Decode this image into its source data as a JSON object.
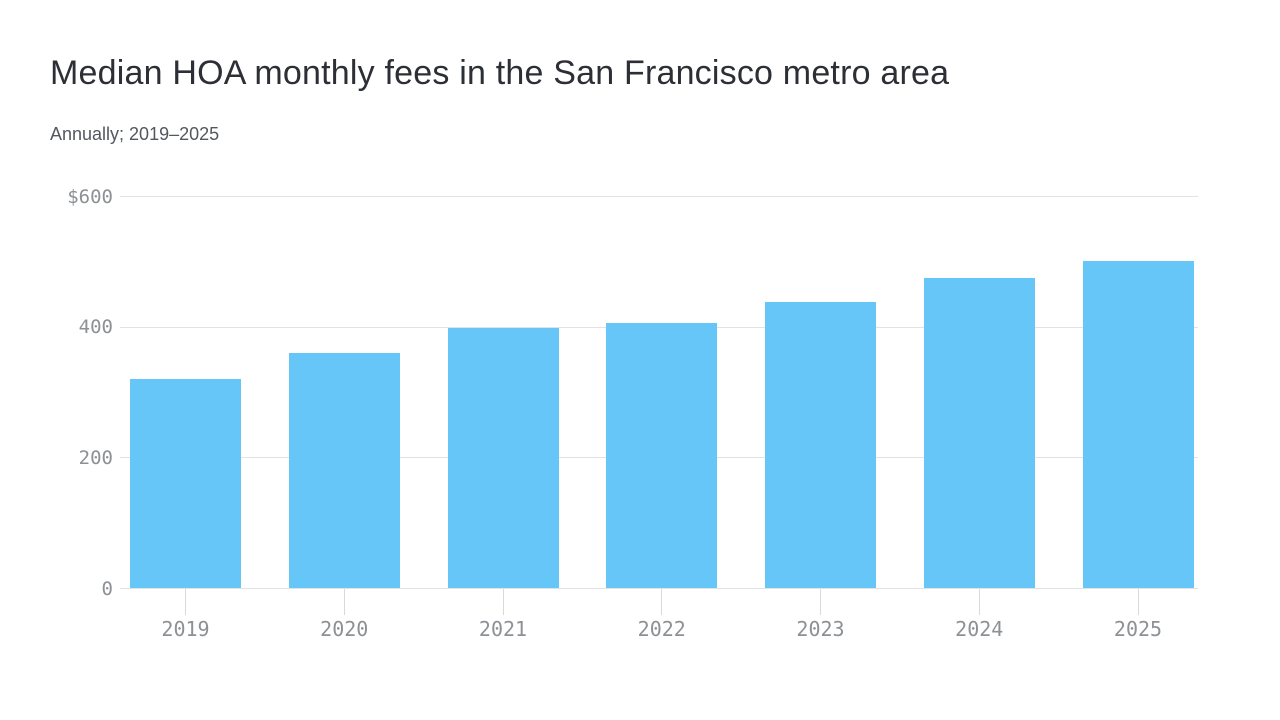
{
  "header": {
    "title": "Median HOA monthly fees in the San Francisco metro area",
    "subtitle": "Annually; 2019–2025",
    "title_color": "#2c2f35",
    "subtitle_color": "#54585e"
  },
  "chart_data": {
    "type": "bar",
    "title": "Median HOA monthly fees in the San Francisco metro area",
    "subtitle": "Annually; 2019–2025",
    "categories": [
      "2019",
      "2020",
      "2021",
      "2022",
      "2023",
      "2024",
      "2025"
    ],
    "values": [
      321,
      361,
      398,
      407,
      438,
      476,
      501
    ],
    "xlabel": "",
    "ylabel": "",
    "ylim": [
      0,
      600
    ],
    "yticks": [
      {
        "label": "$600",
        "value": 600
      },
      {
        "label": "400",
        "value": 400
      },
      {
        "label": "200",
        "value": 200
      },
      {
        "label": "0",
        "value": 0
      }
    ],
    "grid": "horizontal",
    "legend": "none",
    "bar_color": "#66c6f7",
    "gridline_color": "#e2e2e2",
    "tick_color": "#d9d9d9",
    "axis_label_color": "#8d9095",
    "background_color": "#ffffff"
  }
}
